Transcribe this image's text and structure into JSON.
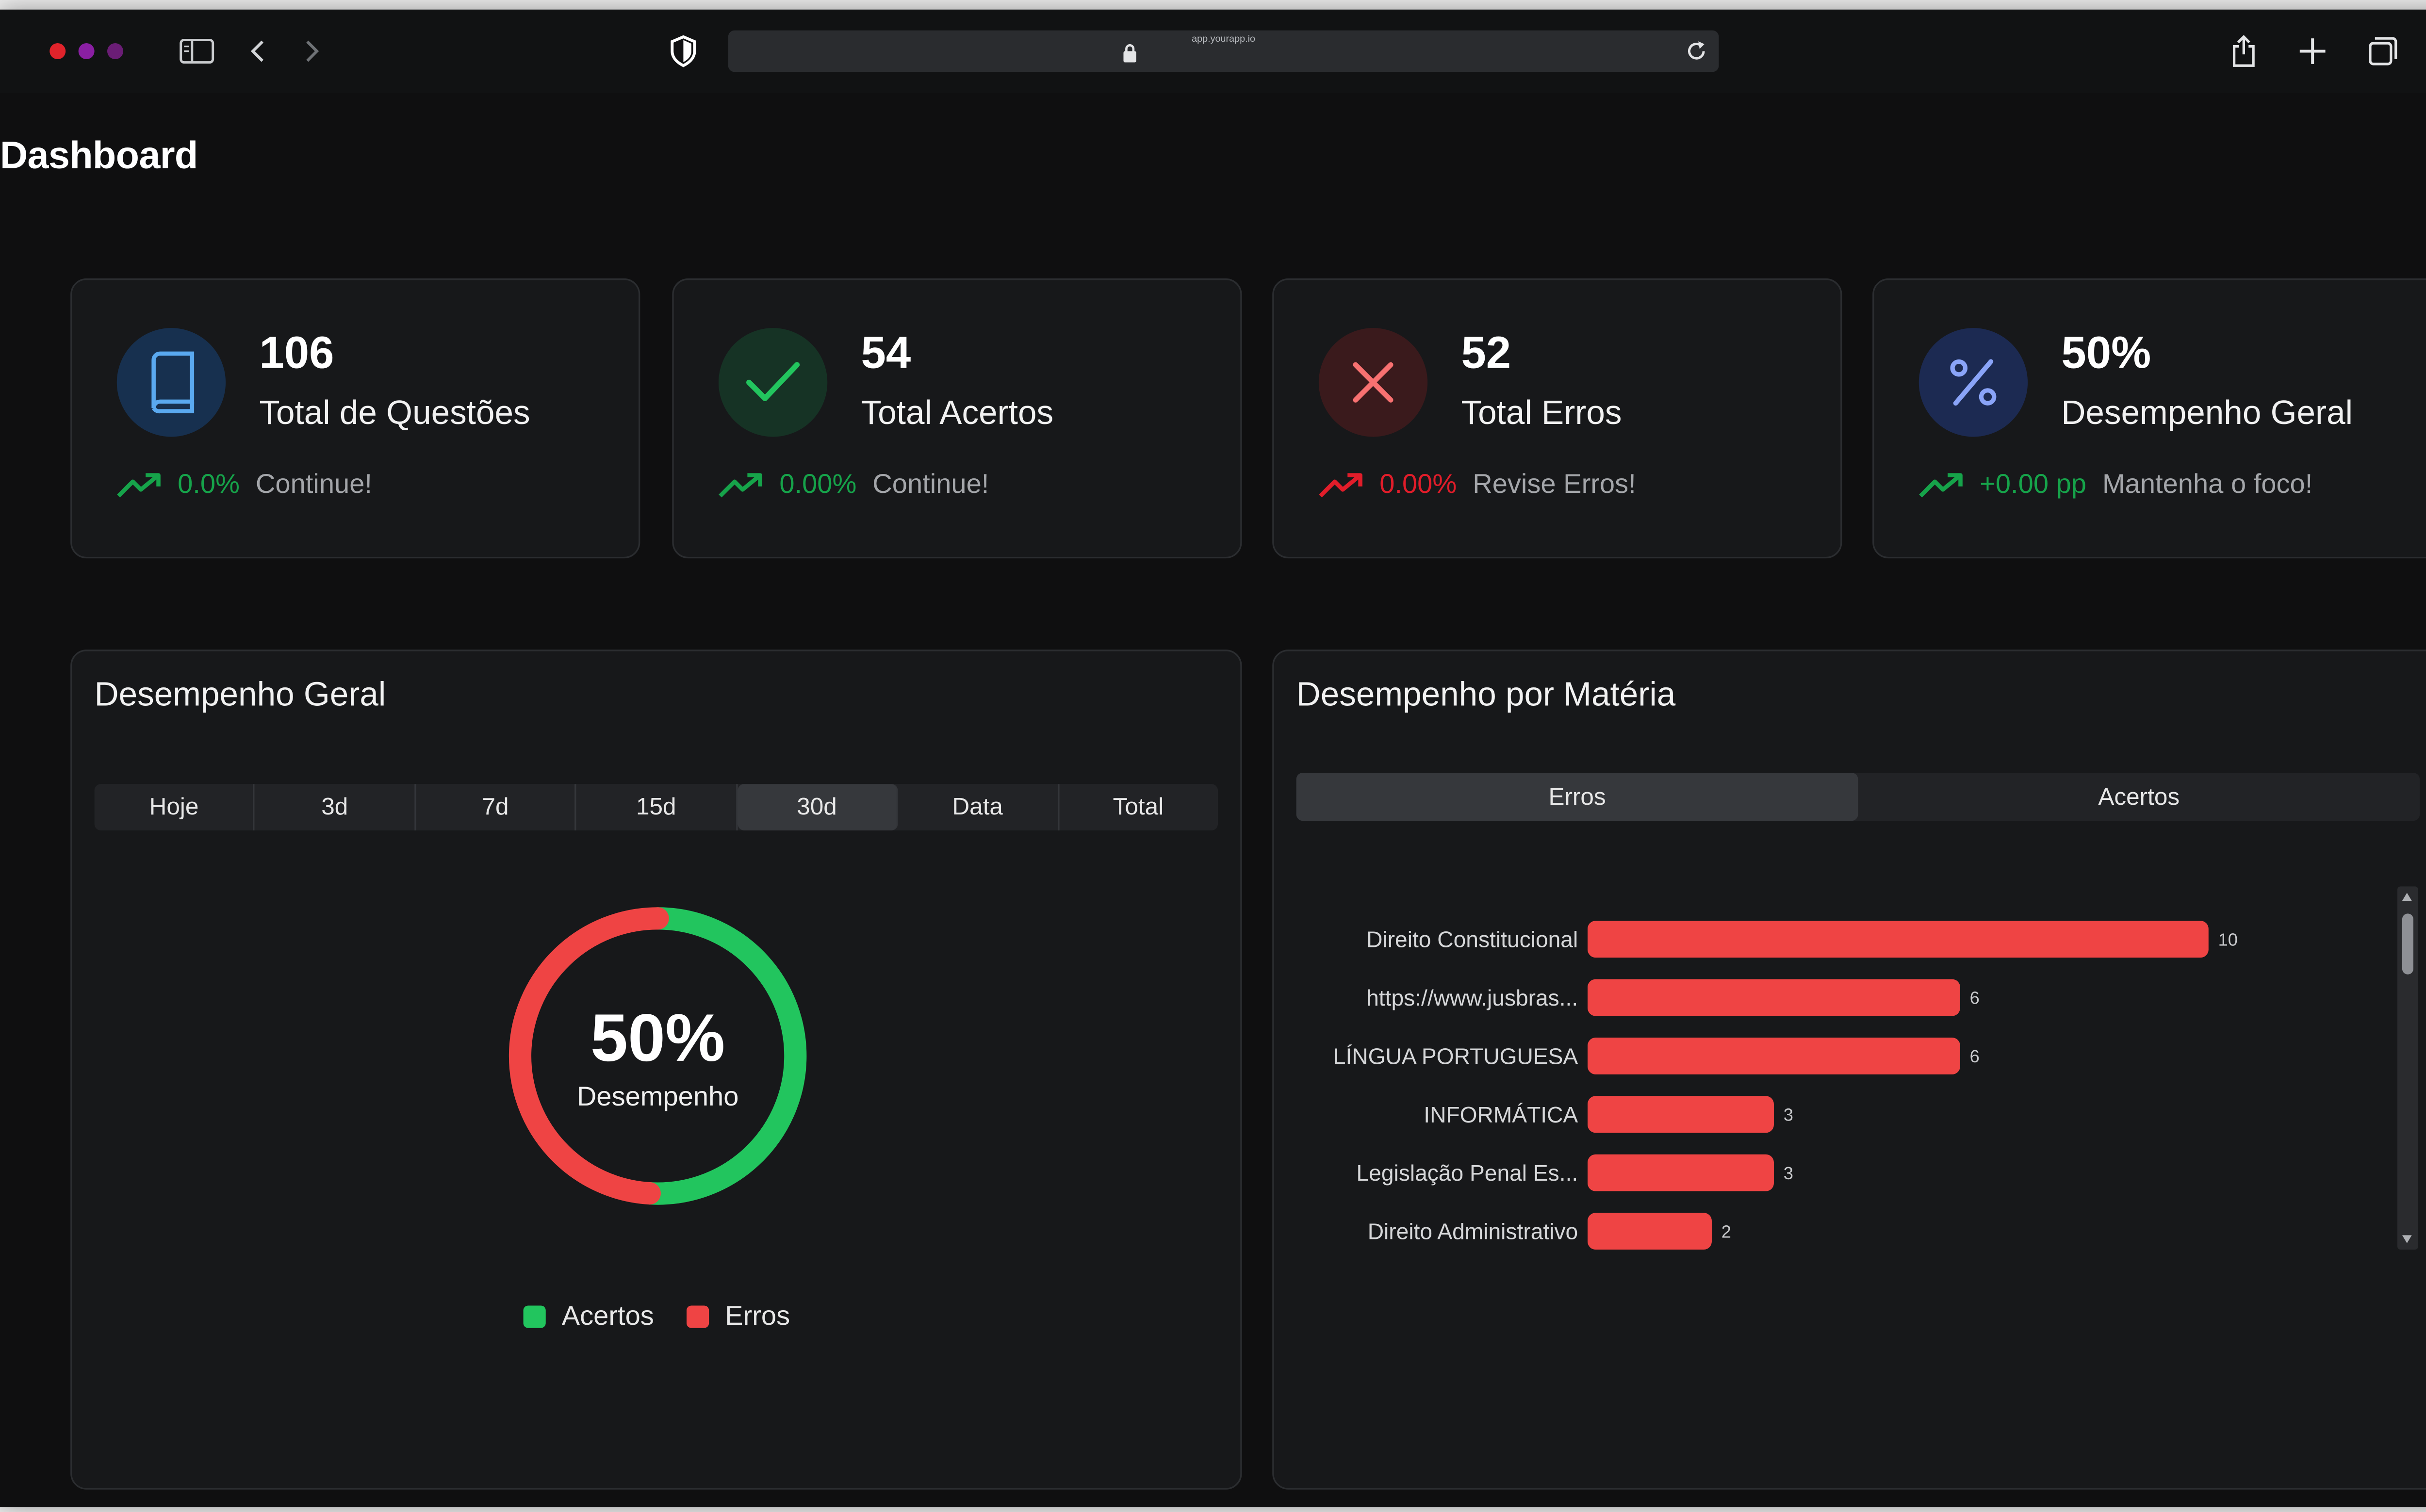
{
  "browser": {
    "url": "app.yourapp.io",
    "traffic_colors": [
      "#e0232b",
      "#8a1fa3",
      "#6a1d75"
    ]
  },
  "page": {
    "title": "Dashboard"
  },
  "stats": [
    {
      "value": "106",
      "label": "Total de Questões",
      "trend": "0.0%",
      "note": "Continue!",
      "icon": "book-icon",
      "trend_icon": "trending-up-icon",
      "trend_color": "#16a34a",
      "icon_bg": "#17304f",
      "icon_color": "#5aa9f0"
    },
    {
      "value": "54",
      "label": "Total Acertos",
      "trend": "0.00%",
      "note": "Continue!",
      "icon": "check-icon",
      "trend_icon": "trending-up-icon",
      "trend_color": "#16a34a",
      "icon_bg": "#163325",
      "icon_color": "#22c55e"
    },
    {
      "value": "52",
      "label": "Total Erros",
      "trend": "0.00%",
      "note": "Revise Erros!",
      "icon": "close-icon",
      "trend_icon": "trending-up-icon",
      "trend_color": "#e11d2a",
      "icon_bg": "#3a1a1c",
      "icon_color": "#f87171"
    },
    {
      "value": "50%",
      "label": "Desempenho Geral",
      "trend": "+0.00 pp",
      "note": "Mantenha o foco!",
      "icon": "percent-icon",
      "trend_icon": "trending-up-icon",
      "trend_color": "#16a34a",
      "icon_bg": "#1c2a52",
      "icon_color": "#8aa4f8"
    }
  ],
  "overall": {
    "title": "Desempenho Geral",
    "tabs": [
      "Hoje",
      "3d",
      "7d",
      "15d",
      "30d",
      "Data",
      "Total"
    ],
    "active_tab": "30d",
    "center_value": "50%",
    "center_label": "Desempenho",
    "legend": [
      {
        "label": "Acertos",
        "color": "#22c55e"
      },
      {
        "label": "Erros",
        "color": "#ef4444"
      }
    ]
  },
  "subjects": {
    "title": "Desempenho por Matéria",
    "tabs": [
      "Erros",
      "Acertos"
    ],
    "active_tab": "Erros"
  },
  "chart_data": [
    {
      "type": "pie",
      "categories": [
        "Acertos",
        "Erros"
      ],
      "values": [
        54,
        52
      ],
      "colors": [
        "#22c55e",
        "#ef4444"
      ],
      "legend": "bottom"
    },
    {
      "type": "bar",
      "orientation": "horizontal",
      "categories": [
        "Direito Constitucional",
        "https://www.jusbras...",
        "LÍNGUA PORTUGUESA",
        "INFORMÁTICA",
        "Legislação Penal Es...",
        "Direito Administrativo"
      ],
      "values": [
        10,
        6,
        6,
        3,
        3,
        2
      ],
      "color": "#ef4444",
      "xlim": [
        0,
        10
      ]
    }
  ]
}
